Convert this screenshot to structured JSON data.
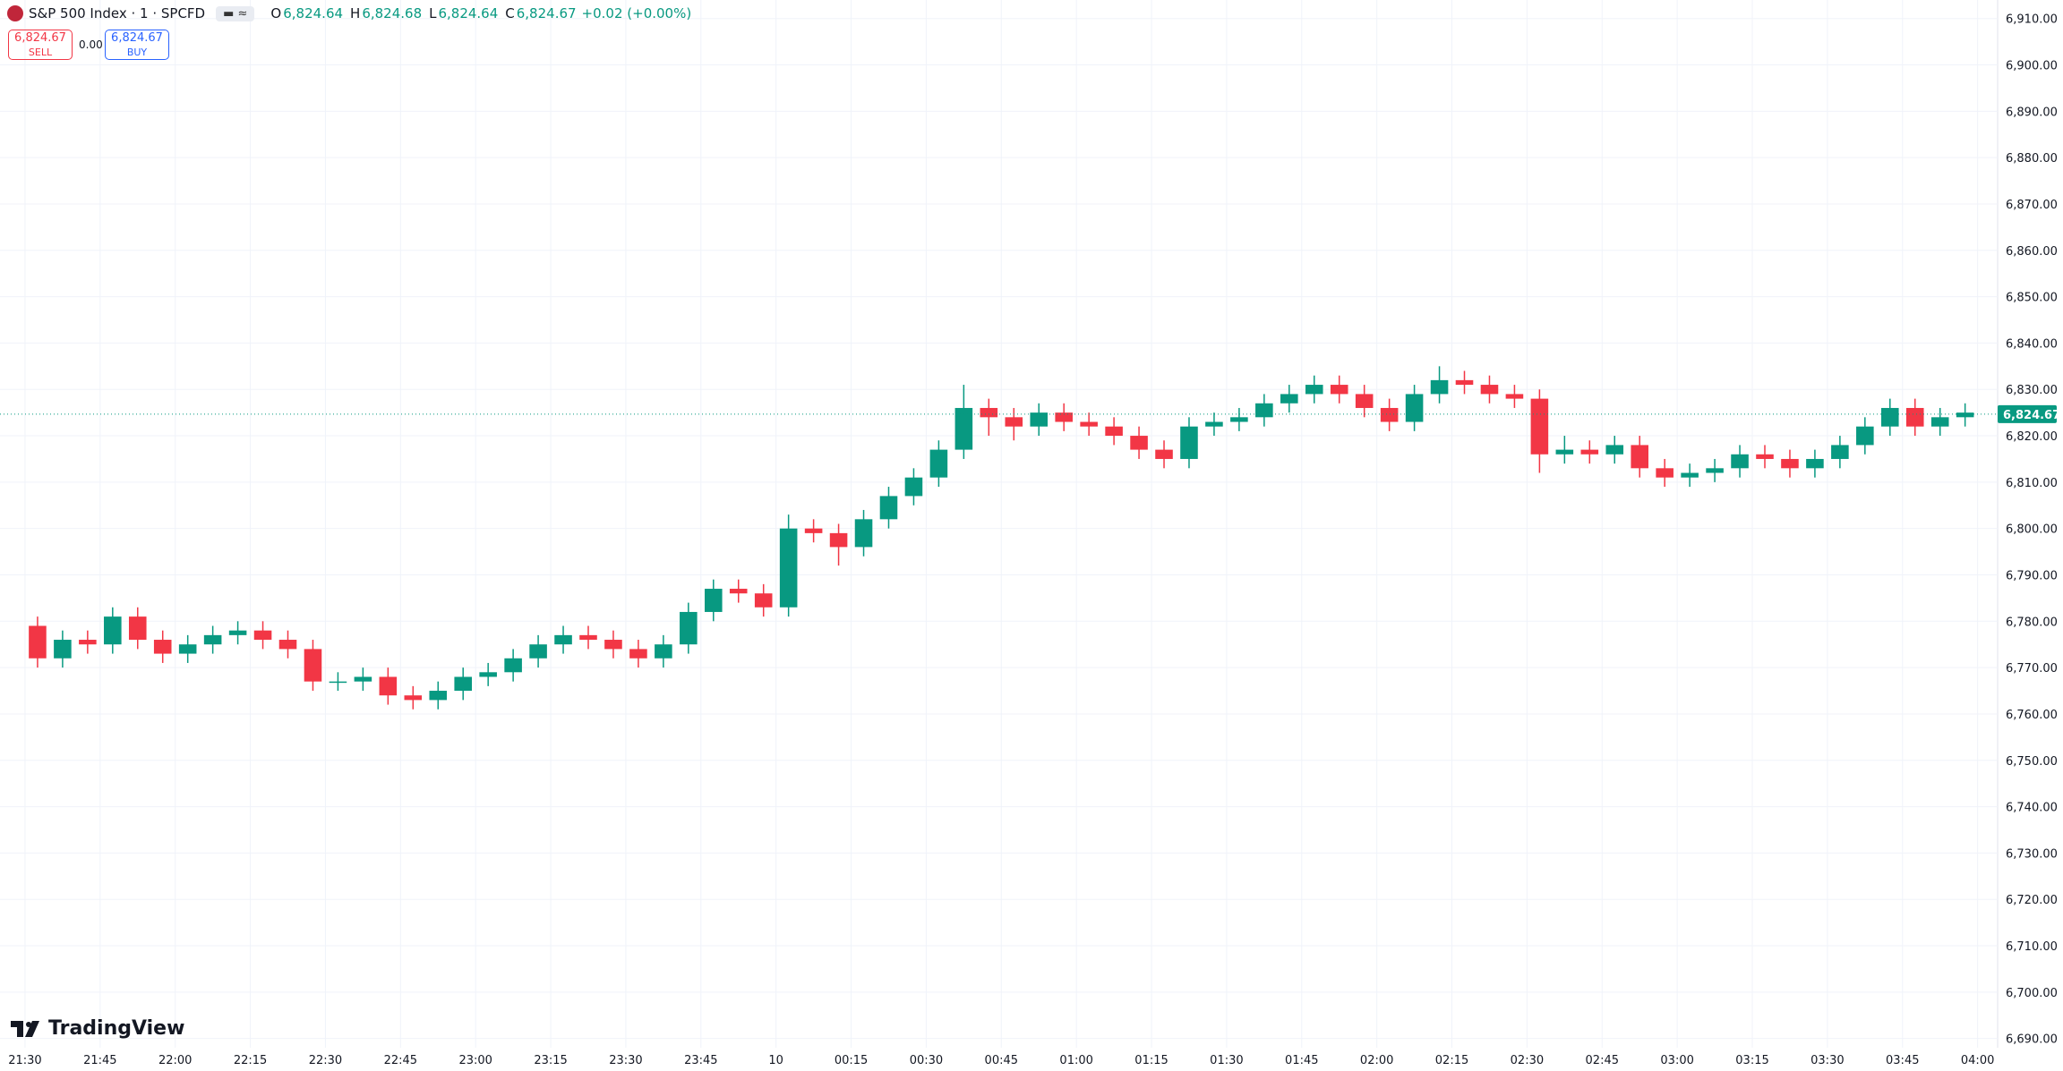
{
  "header": {
    "symbol": "S&P 500 Index · 1 · SPCFD",
    "ohlc": [
      {
        "key": "O",
        "value": "6,824.64"
      },
      {
        "key": "H",
        "value": "6,824.68"
      },
      {
        "key": "L",
        "value": "6,824.64"
      },
      {
        "key": "C",
        "value": "6,824.67"
      }
    ],
    "change": "+0.02 (+0.00%)"
  },
  "trade_panel": {
    "sell_price": "6,824.67",
    "sell_label": "SELL",
    "spread": "0.00",
    "buy_price": "6,824.67",
    "buy_label": "BUY"
  },
  "logo": "TradingView",
  "chart_data": {
    "type": "candlestick",
    "x": [
      0,
      5,
      10,
      15,
      20,
      25,
      30,
      35,
      40,
      45,
      50,
      55,
      60,
      65,
      70,
      75,
      80,
      85,
      90,
      95,
      100,
      105,
      110,
      115,
      120,
      125,
      130,
      135,
      140,
      145,
      150,
      155,
      160,
      165,
      170,
      175,
      180,
      185,
      190,
      195,
      200,
      205,
      210,
      215,
      220,
      225,
      230,
      235,
      240,
      245,
      250,
      255,
      260,
      265,
      270,
      275,
      280,
      285,
      290,
      295,
      300,
      305,
      310,
      315,
      320,
      325,
      330,
      335,
      340,
      345,
      350,
      355,
      360,
      365,
      370,
      375,
      380,
      385
    ],
    "open": [
      6779,
      6772,
      6776,
      6775,
      6781,
      6776,
      6773,
      6775,
      6777,
      6778,
      6776,
      6774,
      6767,
      6767,
      6768,
      6764,
      6763,
      6765,
      6768,
      6769,
      6772,
      6775,
      6777,
      6776,
      6774,
      6772,
      6775,
      6782,
      6787,
      6786,
      6783,
      6800,
      6799,
      6796,
      6802,
      6807,
      6811,
      6817,
      6826,
      6824,
      6822,
      6825,
      6823,
      6822,
      6820,
      6817,
      6815,
      6822,
      6823,
      6824,
      6827,
      6829,
      6831,
      6829,
      6826,
      6823,
      6829,
      6832,
      6831,
      6829,
      6828,
      6816,
      6817,
      6816,
      6818,
      6813,
      6811,
      6812,
      6813,
      6816,
      6815,
      6813,
      6815,
      6818,
      6822,
      6826,
      6822,
      6824
    ],
    "high": [
      6781,
      6778,
      6778,
      6783,
      6783,
      6778,
      6777,
      6779,
      6780,
      6780,
      6778,
      6776,
      6769,
      6770,
      6770,
      6766,
      6767,
      6770,
      6771,
      6774,
      6777,
      6779,
      6779,
      6778,
      6776,
      6777,
      6784,
      6789,
      6789,
      6788,
      6803,
      6802,
      6801,
      6804,
      6809,
      6813,
      6819,
      6831,
      6828,
      6826,
      6827,
      6827,
      6825,
      6824,
      6822,
      6819,
      6824,
      6825,
      6826,
      6829,
      6831,
      6833,
      6833,
      6831,
      6828,
      6831,
      6835,
      6834,
      6833,
      6831,
      6830,
      6820,
      6819,
      6820,
      6820,
      6815,
      6814,
      6815,
      6818,
      6818,
      6817,
      6817,
      6820,
      6824,
      6828,
      6828,
      6826,
      6827
    ],
    "low": [
      6770,
      6770,
      6773,
      6773,
      6774,
      6771,
      6771,
      6773,
      6775,
      6774,
      6772,
      6765,
      6765,
      6765,
      6762,
      6761,
      6761,
      6763,
      6766,
      6767,
      6770,
      6773,
      6774,
      6772,
      6770,
      6770,
      6773,
      6780,
      6784,
      6781,
      6781,
      6797,
      6792,
      6794,
      6800,
      6805,
      6809,
      6815,
      6820,
      6819,
      6820,
      6821,
      6820,
      6818,
      6815,
      6813,
      6813,
      6820,
      6821,
      6822,
      6825,
      6827,
      6827,
      6824,
      6821,
      6821,
      6827,
      6829,
      6827,
      6826,
      6812,
      6814,
      6814,
      6814,
      6811,
      6809,
      6809,
      6810,
      6811,
      6813,
      6811,
      6811,
      6813,
      6816,
      6820,
      6820,
      6820,
      6822
    ],
    "close": [
      6772,
      6776,
      6775,
      6781,
      6776,
      6773,
      6775,
      6777,
      6778,
      6776,
      6774,
      6767,
      6767,
      6768,
      6764,
      6763,
      6765,
      6768,
      6769,
      6772,
      6775,
      6777,
      6776,
      6774,
      6772,
      6775,
      6782,
      6787,
      6786,
      6783,
      6800,
      6799,
      6796,
      6802,
      6807,
      6811,
      6817,
      6826,
      6824,
      6822,
      6825,
      6823,
      6822,
      6820,
      6817,
      6815,
      6822,
      6823,
      6824,
      6827,
      6829,
      6831,
      6829,
      6826,
      6823,
      6829,
      6832,
      6831,
      6829,
      6828,
      6816,
      6817,
      6816,
      6818,
      6813,
      6811,
      6812,
      6813,
      6816,
      6815,
      6813,
      6815,
      6818,
      6822,
      6826,
      6822,
      6824,
      6825
    ],
    "up_color": "#089981",
    "down_color": "#f23645",
    "xlim": [
      -5,
      394
    ],
    "ylim": [
      6688,
      6914
    ],
    "grid": true,
    "xticks": [
      {
        "value": 0,
        "label": "21:30"
      },
      {
        "value": 15,
        "label": "21:45"
      },
      {
        "value": 30,
        "label": "22:00"
      },
      {
        "value": 45,
        "label": "22:15"
      },
      {
        "value": 60,
        "label": "22:30"
      },
      {
        "value": 75,
        "label": "22:45"
      },
      {
        "value": 90,
        "label": "23:00"
      },
      {
        "value": 105,
        "label": "23:15"
      },
      {
        "value": 120,
        "label": "23:30"
      },
      {
        "value": 135,
        "label": "23:45"
      },
      {
        "value": 150,
        "label": "10"
      },
      {
        "value": 165,
        "label": "00:15"
      },
      {
        "value": 180,
        "label": "00:30"
      },
      {
        "value": 195,
        "label": "00:45"
      },
      {
        "value": 210,
        "label": "01:00"
      },
      {
        "value": 225,
        "label": "01:15"
      },
      {
        "value": 240,
        "label": "01:30"
      },
      {
        "value": 255,
        "label": "01:45"
      },
      {
        "value": 270,
        "label": "02:00"
      },
      {
        "value": 285,
        "label": "02:15"
      },
      {
        "value": 300,
        "label": "02:30"
      },
      {
        "value": 315,
        "label": "02:45"
      },
      {
        "value": 330,
        "label": "03:00"
      },
      {
        "value": 345,
        "label": "03:15"
      },
      {
        "value": 360,
        "label": "03:30"
      },
      {
        "value": 375,
        "label": "03:45"
      },
      {
        "value": 390,
        "label": "04:00"
      }
    ],
    "yticks": [
      {
        "value": 6690,
        "label": "6,690.00"
      },
      {
        "value": 6700,
        "label": "6,700.00"
      },
      {
        "value": 6710,
        "label": "6,710.00"
      },
      {
        "value": 6720,
        "label": "6,720.00"
      },
      {
        "value": 6730,
        "label": "6,730.00"
      },
      {
        "value": 6740,
        "label": "6,740.00"
      },
      {
        "value": 6750,
        "label": "6,750.00"
      },
      {
        "value": 6760,
        "label": "6,760.00"
      },
      {
        "value": 6770,
        "label": "6,770.00"
      },
      {
        "value": 6780,
        "label": "6,780.00"
      },
      {
        "value": 6790,
        "label": "6,790.00"
      },
      {
        "value": 6800,
        "label": "6,800.00"
      },
      {
        "value": 6810,
        "label": "6,810.00"
      },
      {
        "value": 6820,
        "label": "6,820.00"
      },
      {
        "value": 6830,
        "label": "6,830.00"
      },
      {
        "value": 6840,
        "label": "6,840.00"
      },
      {
        "value": 6850,
        "label": "6,850.00"
      },
      {
        "value": 6860,
        "label": "6,860.00"
      },
      {
        "value": 6870,
        "label": "6,870.00"
      },
      {
        "value": 6880,
        "label": "6,880.00"
      },
      {
        "value": 6890,
        "label": "6,890.00"
      },
      {
        "value": 6900,
        "label": "6,900.00"
      },
      {
        "value": 6910,
        "label": "6,910.00"
      }
    ],
    "last_price": {
      "value": 6824.67,
      "label": "6,824.67"
    },
    "last_price_color": "#089981"
  }
}
